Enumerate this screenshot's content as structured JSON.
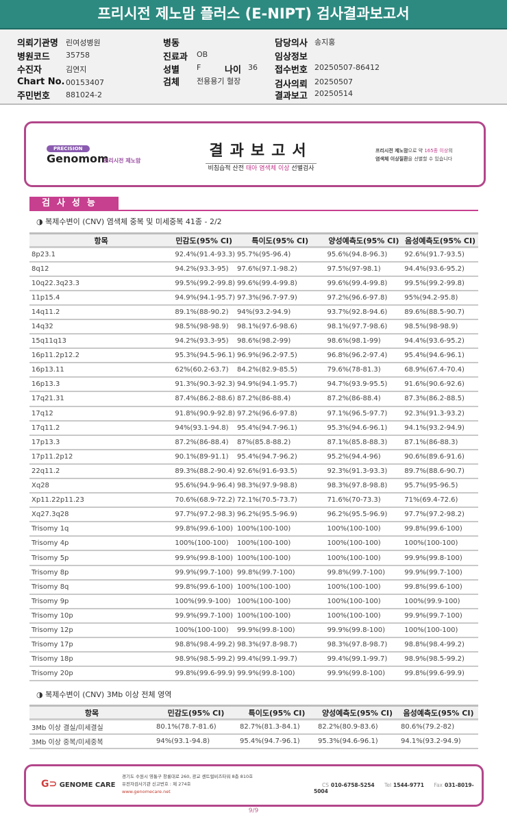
{
  "title": "프리시전 제노맘 플러스 (E-NIPT) 검사결과보고서",
  "info": {
    "institution": {
      "label": "의뢰기관명",
      "value": "린여성병원"
    },
    "hospital_code": {
      "label": "병원코드",
      "value": "35758"
    },
    "patient": {
      "label": "수진자",
      "value": "김연지"
    },
    "chart_no": {
      "label": "Chart No.",
      "value": "00153407"
    },
    "resident_no": {
      "label": "주민번호",
      "value": "881024-2"
    },
    "ward": {
      "label": "병동",
      "value": ""
    },
    "department": {
      "label": "진료과",
      "value": "OB"
    },
    "sex": {
      "label": "성별",
      "value": "F"
    },
    "age": {
      "label": "나이",
      "value": "36"
    },
    "specimen": {
      "label": "검체",
      "value": "전용용기 혈장"
    },
    "doctor": {
      "label": "담당의사",
      "value": "송지홍"
    },
    "clinical": {
      "label": "임상정보",
      "value": ""
    },
    "receipt_no": {
      "label": "접수번호",
      "value": "20250507-86412"
    },
    "request_date": {
      "label": "검사의뢰",
      "value": "20250507"
    },
    "report_date": {
      "label": "결과보고",
      "value": "20250514"
    }
  },
  "banner": {
    "precision": "PRECISION",
    "brand": "Genomom",
    "brand_kr": "프리시전 제노맘",
    "title": "결과보고서",
    "subtitle_pre": "비침습적 산전 ",
    "subtitle_hl": "태아 염색체 이상",
    "subtitle_post": " 선별검사",
    "right_line1_a": "프리시전 제노맘",
    "right_line1_b": "으로 약 ",
    "right_line1_c": "165종 이상",
    "right_line1_d": "의",
    "right_line2_a": "염색체 이상질환",
    "right_line2_b": "을 선별할 수 있습니다"
  },
  "section_title": "검사성능",
  "headers": [
    "항목",
    "민감도(95% CI)",
    "특이도(95% CI)",
    "양성예측도(95% CI)",
    "음성예측도(95% CI)"
  ],
  "table1": {
    "subtitle": "◑ 복제수변이 (CNV) 염색체 중복 및 미세중복 41종 - 2/2",
    "rows": [
      [
        "8p23.1",
        "92.4%(91.4-93.3)",
        "95.7%(95-96.4)",
        "95.6%(94.8-96.3)",
        "92.6%(91.7-93.5)"
      ],
      [
        "8q12",
        "94.2%(93.3-95)",
        "97.6%(97.1-98.2)",
        "97.5%(97-98.1)",
        "94.4%(93.6-95.2)"
      ],
      [
        "10q22.3q23.3",
        "99.5%(99.2-99.8)",
        "99.6%(99.4-99.8)",
        "99.6%(99.4-99.8)",
        "99.5%(99.2-99.8)"
      ],
      [
        "11p15.4",
        "94.9%(94.1-95.7)",
        "97.3%(96.7-97.9)",
        "97.2%(96.6-97.8)",
        "95%(94.2-95.8)"
      ],
      [
        "14q11.2",
        "89.1%(88-90.2)",
        "94%(93.2-94.9)",
        "93.7%(92.8-94.6)",
        "89.6%(88.5-90.7)"
      ],
      [
        "14q32",
        "98.5%(98-98.9)",
        "98.1%(97.6-98.6)",
        "98.1%(97.7-98.6)",
        "98.5%(98-98.9)"
      ],
      [
        "15q11q13",
        "94.2%(93.3-95)",
        "98.6%(98.2-99)",
        "98.6%(98.1-99)",
        "94.4%(93.6-95.2)"
      ],
      [
        "16p11.2p12.2",
        "95.3%(94.5-96.1)",
        "96.9%(96.2-97.5)",
        "96.8%(96.2-97.4)",
        "95.4%(94.6-96.1)"
      ],
      [
        "16p13.11",
        "62%(60.2-63.7)",
        "84.2%(82.9-85.5)",
        "79.6%(78-81.3)",
        "68.9%(67.4-70.4)"
      ],
      [
        "16p13.3",
        "91.3%(90.3-92.3)",
        "94.9%(94.1-95.7)",
        "94.7%(93.9-95.5)",
        "91.6%(90.6-92.6)"
      ],
      [
        "17q21.31",
        "87.4%(86.2-88.6)",
        "87.2%(86-88.4)",
        "87.2%(86-88.4)",
        "87.3%(86.2-88.5)"
      ],
      [
        "17q12",
        "91.8%(90.9-92.8)",
        "97.2%(96.6-97.8)",
        "97.1%(96.5-97.7)",
        "92.3%(91.3-93.2)"
      ],
      [
        "17q11.2",
        "94%(93.1-94.8)",
        "95.4%(94.7-96.1)",
        "95.3%(94.6-96.1)",
        "94.1%(93.2-94.9)"
      ],
      [
        "17p13.3",
        "87.2%(86-88.4)",
        "87%(85.8-88.2)",
        "87.1%(85.8-88.3)",
        "87.1%(86-88.3)"
      ],
      [
        "17p11.2p12",
        "90.1%(89-91.1)",
        "95.4%(94.7-96.2)",
        "95.2%(94.4-96)",
        "90.6%(89.6-91.6)"
      ],
      [
        "22q11.2",
        "89.3%(88.2-90.4)",
        "92.6%(91.6-93.5)",
        "92.3%(91.3-93.3)",
        "89.7%(88.6-90.7)"
      ],
      [
        "Xq28",
        "95.6%(94.9-96.4)",
        "98.3%(97.9-98.8)",
        "98.3%(97.8-98.8)",
        "95.7%(95-96.5)"
      ],
      [
        "Xp11.22p11.23",
        "70.6%(68.9-72.2)",
        "72.1%(70.5-73.7)",
        "71.6%(70-73.3)",
        "71%(69.4-72.6)"
      ],
      [
        "Xq27.3q28",
        "97.7%(97.2-98.3)",
        "96.2%(95.5-96.9)",
        "96.2%(95.5-96.9)",
        "97.7%(97.2-98.2)"
      ],
      [
        "Trisomy 1q",
        "99.8%(99.6-100)",
        "100%(100-100)",
        "100%(100-100)",
        "99.8%(99.6-100)"
      ],
      [
        "Trisomy 4p",
        "100%(100-100)",
        "100%(100-100)",
        "100%(100-100)",
        "100%(100-100)"
      ],
      [
        "Trisomy 5p",
        "99.9%(99.8-100)",
        "100%(100-100)",
        "100%(100-100)",
        "99.9%(99.8-100)"
      ],
      [
        "Trisomy 8p",
        "99.9%(99.7-100)",
        "99.8%(99.7-100)",
        "99.8%(99.7-100)",
        "99.9%(99.7-100)"
      ],
      [
        "Trisomy 8q",
        "99.8%(99.6-100)",
        "100%(100-100)",
        "100%(100-100)",
        "99.8%(99.6-100)"
      ],
      [
        "Trisomy 9p",
        "100%(99.9-100)",
        "100%(100-100)",
        "100%(100-100)",
        "100%(99.9-100)"
      ],
      [
        "Trisomy 10p",
        "99.9%(99.7-100)",
        "100%(100-100)",
        "100%(100-100)",
        "99.9%(99.7-100)"
      ],
      [
        "Trisomy 12p",
        "100%(100-100)",
        "99.9%(99.8-100)",
        "99.9%(99.8-100)",
        "100%(100-100)"
      ],
      [
        "Trisomy 17p",
        "98.8%(98.4-99.2)",
        "98.3%(97.8-98.7)",
        "98.3%(97.8-98.7)",
        "98.8%(98.4-99.2)"
      ],
      [
        "Trisomy 18p",
        "98.9%(98.5-99.2)",
        "99.4%(99.1-99.7)",
        "99.4%(99.1-99.7)",
        "98.9%(98.5-99.2)"
      ],
      [
        "Trisomy 20p",
        "99.8%(99.6-99.9)",
        "99.9%(99.8-100)",
        "99.9%(99.8-100)",
        "99.8%(99.6-99.9)"
      ]
    ]
  },
  "table2": {
    "subtitle": "◑ 복제수변이 (CNV) 3Mb 이상 전체 영역",
    "rows": [
      [
        "3Mb 이상 결실/미세결실",
        "80.1%(78.7-81.6)",
        "82.7%(81.3-84.1)",
        "82.2%(80.9-83.6)",
        "80.6%(79.2-82)"
      ],
      [
        "3Mb 이상 중복/미세중복",
        "94%(93.1-94.8)",
        "95.4%(94.7-96.1)",
        "95.3%(94.6-96.1)",
        "94.1%(93.2-94.9)"
      ]
    ]
  },
  "footer": {
    "logo": "GENOME CARE",
    "address": "경기도 수원시 영통구 창룡대로 260, 광교 센트럴비즈타워 8층 810호",
    "license": "유전자검사기관 신고번호 : 제 274호",
    "url": "www.genomecare.net",
    "cs_label": "CS",
    "cs": "010-6758-5254",
    "tel_label": "Tel",
    "tel": "1544-9771",
    "fax_label": "Fax",
    "fax": "031-8019-5004"
  },
  "page": "9/9",
  "colors": {
    "title_bar": "#2d8a80",
    "accent": "#c73f8f"
  }
}
